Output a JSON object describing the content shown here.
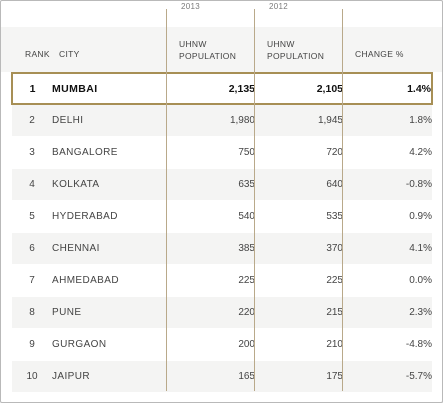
{
  "years": {
    "y2013": "2013",
    "y2012": "2012"
  },
  "headers": {
    "rank": "RANK",
    "city": "CITY",
    "uhnw2013_line1": "UHNW",
    "uhnw2013_line2": "POPULATION",
    "uhnw2012_line1": "UHNW",
    "uhnw2012_line2": "POPULATION",
    "change": "CHANGE %"
  },
  "rows": [
    {
      "rank": "1",
      "city": "MUMBAI",
      "pop2013": "2,135",
      "pop2012": "2,105",
      "change": "1.4%",
      "highlight": true
    },
    {
      "rank": "2",
      "city": "DELHI",
      "pop2013": "1,980",
      "pop2012": "1,945",
      "change": "1.8%"
    },
    {
      "rank": "3",
      "city": "BANGALORE",
      "pop2013": "750",
      "pop2012": "720",
      "change": "4.2%"
    },
    {
      "rank": "4",
      "city": "KOLKATA",
      "pop2013": "635",
      "pop2012": "640",
      "change": "-0.8%"
    },
    {
      "rank": "5",
      "city": "HYDERABAD",
      "pop2013": "540",
      "pop2012": "535",
      "change": "0.9%"
    },
    {
      "rank": "6",
      "city": "CHENNAI",
      "pop2013": "385",
      "pop2012": "370",
      "change": "4.1%"
    },
    {
      "rank": "7",
      "city": "AHMEDABAD",
      "pop2013": "225",
      "pop2012": "225",
      "change": "0.0%"
    },
    {
      "rank": "8",
      "city": "PUNE",
      "pop2013": "220",
      "pop2012": "215",
      "change": "2.3%"
    },
    {
      "rank": "9",
      "city": "GURGAON",
      "pop2013": "200",
      "pop2012": "210",
      "change": "-4.8%"
    },
    {
      "rank": "10",
      "city": "JAIPUR",
      "pop2013": "165",
      "pop2012": "175",
      "change": "-5.7%"
    }
  ],
  "colors": {
    "accent": "#a78f55",
    "divider": "#b9a98a",
    "stripe": "#f4f4f3"
  }
}
